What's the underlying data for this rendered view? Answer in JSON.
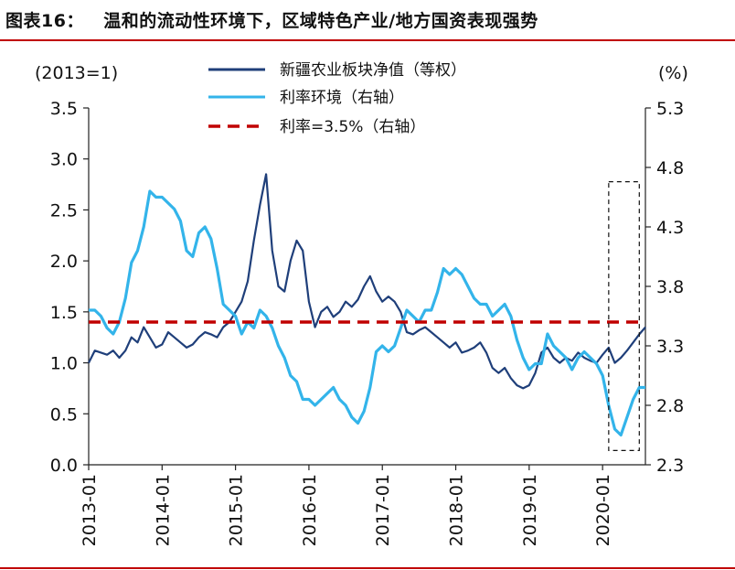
{
  "figure": {
    "title": "图表16：   温和的流动性环境下，区域特色产业/地方国资表现强势"
  },
  "chart_data": {
    "type": "line",
    "left_axis": {
      "unit_label": "(2013=1)",
      "range": [
        0.0,
        3.5
      ],
      "ticks": [
        "0.0",
        "0.5",
        "1.0",
        "1.5",
        "2.0",
        "2.5",
        "3.0",
        "3.5"
      ]
    },
    "right_axis": {
      "unit_label": "(%)",
      "range": [
        2.3,
        5.3
      ],
      "ticks": [
        "2.3",
        "2.8",
        "3.3",
        "3.8",
        "4.3",
        "4.8",
        "5.3"
      ]
    },
    "x_axis": {
      "range": [
        "2013-01",
        "2020-08"
      ],
      "tick_labels": [
        "2013-01",
        "2014-01",
        "2015-01",
        "2016-01",
        "2017-01",
        "2018-01",
        "2019-01",
        "2020-01"
      ]
    },
    "legend_position": "top",
    "series": [
      {
        "name": "新疆农业板块净值（等权）",
        "axis": "left",
        "color": "#1f3f7a",
        "points": [
          [
            "2013-01",
            1.0
          ],
          [
            "2013-02",
            1.12
          ],
          [
            "2013-03",
            1.1
          ],
          [
            "2013-04",
            1.08
          ],
          [
            "2013-05",
            1.12
          ],
          [
            "2013-06",
            1.05
          ],
          [
            "2013-07",
            1.12
          ],
          [
            "2013-08",
            1.25
          ],
          [
            "2013-09",
            1.2
          ],
          [
            "2013-10",
            1.35
          ],
          [
            "2013-11",
            1.25
          ],
          [
            "2013-12",
            1.15
          ],
          [
            "2014-01",
            1.18
          ],
          [
            "2014-02",
            1.3
          ],
          [
            "2014-03",
            1.25
          ],
          [
            "2014-04",
            1.2
          ],
          [
            "2014-05",
            1.15
          ],
          [
            "2014-06",
            1.18
          ],
          [
            "2014-07",
            1.25
          ],
          [
            "2014-08",
            1.3
          ],
          [
            "2014-09",
            1.28
          ],
          [
            "2014-10",
            1.25
          ],
          [
            "2014-11",
            1.35
          ],
          [
            "2014-12",
            1.4
          ],
          [
            "2015-01",
            1.5
          ],
          [
            "2015-02",
            1.6
          ],
          [
            "2015-03",
            1.8
          ],
          [
            "2015-04",
            2.2
          ],
          [
            "2015-05",
            2.55
          ],
          [
            "2015-06",
            2.85
          ],
          [
            "2015-07",
            2.1
          ],
          [
            "2015-08",
            1.75
          ],
          [
            "2015-09",
            1.7
          ],
          [
            "2015-10",
            2.0
          ],
          [
            "2015-11",
            2.2
          ],
          [
            "2015-12",
            2.1
          ],
          [
            "2016-01",
            1.6
          ],
          [
            "2016-02",
            1.35
          ],
          [
            "2016-03",
            1.5
          ],
          [
            "2016-04",
            1.55
          ],
          [
            "2016-05",
            1.45
          ],
          [
            "2016-06",
            1.5
          ],
          [
            "2016-07",
            1.6
          ],
          [
            "2016-08",
            1.55
          ],
          [
            "2016-09",
            1.62
          ],
          [
            "2016-10",
            1.75
          ],
          [
            "2016-11",
            1.85
          ],
          [
            "2016-12",
            1.7
          ],
          [
            "2017-01",
            1.6
          ],
          [
            "2017-02",
            1.65
          ],
          [
            "2017-03",
            1.6
          ],
          [
            "2017-04",
            1.5
          ],
          [
            "2017-05",
            1.3
          ],
          [
            "2017-06",
            1.28
          ],
          [
            "2017-07",
            1.32
          ],
          [
            "2017-08",
            1.35
          ],
          [
            "2017-09",
            1.3
          ],
          [
            "2017-10",
            1.25
          ],
          [
            "2017-11",
            1.2
          ],
          [
            "2017-12",
            1.15
          ],
          [
            "2018-01",
            1.2
          ],
          [
            "2018-02",
            1.1
          ],
          [
            "2018-03",
            1.12
          ],
          [
            "2018-04",
            1.15
          ],
          [
            "2018-05",
            1.2
          ],
          [
            "2018-06",
            1.1
          ],
          [
            "2018-07",
            0.95
          ],
          [
            "2018-08",
            0.9
          ],
          [
            "2018-09",
            0.95
          ],
          [
            "2018-10",
            0.85
          ],
          [
            "2018-11",
            0.78
          ],
          [
            "2018-12",
            0.75
          ],
          [
            "2019-01",
            0.78
          ],
          [
            "2019-02",
            0.9
          ],
          [
            "2019-03",
            1.1
          ],
          [
            "2019-04",
            1.15
          ],
          [
            "2019-05",
            1.05
          ],
          [
            "2019-06",
            1.0
          ],
          [
            "2019-07",
            1.05
          ],
          [
            "2019-08",
            1.02
          ],
          [
            "2019-09",
            1.1
          ],
          [
            "2019-10",
            1.05
          ],
          [
            "2019-11",
            1.02
          ],
          [
            "2019-12",
            1.0
          ],
          [
            "2020-01",
            1.08
          ],
          [
            "2020-02",
            1.15
          ],
          [
            "2020-03",
            1.0
          ],
          [
            "2020-04",
            1.05
          ],
          [
            "2020-05",
            1.12
          ],
          [
            "2020-06",
            1.2
          ],
          [
            "2020-07",
            1.28
          ],
          [
            "2020-08",
            1.35
          ]
        ]
      },
      {
        "name": "利率环境（右轴）",
        "axis": "right",
        "color": "#33b4ea",
        "points": [
          [
            "2013-01",
            3.6
          ],
          [
            "2013-02",
            3.6
          ],
          [
            "2013-03",
            3.55
          ],
          [
            "2013-04",
            3.45
          ],
          [
            "2013-05",
            3.4
          ],
          [
            "2013-06",
            3.5
          ],
          [
            "2013-07",
            3.7
          ],
          [
            "2013-08",
            4.0
          ],
          [
            "2013-09",
            4.1
          ],
          [
            "2013-10",
            4.3
          ],
          [
            "2013-11",
            4.6
          ],
          [
            "2013-12",
            4.55
          ],
          [
            "2014-01",
            4.55
          ],
          [
            "2014-02",
            4.5
          ],
          [
            "2014-03",
            4.45
          ],
          [
            "2014-04",
            4.35
          ],
          [
            "2014-05",
            4.1
          ],
          [
            "2014-06",
            4.05
          ],
          [
            "2014-07",
            4.25
          ],
          [
            "2014-08",
            4.3
          ],
          [
            "2014-09",
            4.2
          ],
          [
            "2014-10",
            3.95
          ],
          [
            "2014-11",
            3.65
          ],
          [
            "2014-12",
            3.6
          ],
          [
            "2015-01",
            3.55
          ],
          [
            "2015-02",
            3.4
          ],
          [
            "2015-03",
            3.5
          ],
          [
            "2015-04",
            3.45
          ],
          [
            "2015-05",
            3.6
          ],
          [
            "2015-06",
            3.55
          ],
          [
            "2015-07",
            3.45
          ],
          [
            "2015-08",
            3.3
          ],
          [
            "2015-09",
            3.2
          ],
          [
            "2015-10",
            3.05
          ],
          [
            "2015-11",
            3.0
          ],
          [
            "2015-12",
            2.85
          ],
          [
            "2016-01",
            2.85
          ],
          [
            "2016-02",
            2.8
          ],
          [
            "2016-03",
            2.85
          ],
          [
            "2016-04",
            2.9
          ],
          [
            "2016-05",
            2.95
          ],
          [
            "2016-06",
            2.85
          ],
          [
            "2016-07",
            2.8
          ],
          [
            "2016-08",
            2.7
          ],
          [
            "2016-09",
            2.65
          ],
          [
            "2016-10",
            2.75
          ],
          [
            "2016-11",
            2.95
          ],
          [
            "2016-12",
            3.25
          ],
          [
            "2017-01",
            3.3
          ],
          [
            "2017-02",
            3.25
          ],
          [
            "2017-03",
            3.3
          ],
          [
            "2017-04",
            3.45
          ],
          [
            "2017-05",
            3.6
          ],
          [
            "2017-06",
            3.55
          ],
          [
            "2017-07",
            3.5
          ],
          [
            "2017-08",
            3.6
          ],
          [
            "2017-09",
            3.6
          ],
          [
            "2017-10",
            3.75
          ],
          [
            "2017-11",
            3.95
          ],
          [
            "2017-12",
            3.9
          ],
          [
            "2018-01",
            3.95
          ],
          [
            "2018-02",
            3.9
          ],
          [
            "2018-03",
            3.8
          ],
          [
            "2018-04",
            3.7
          ],
          [
            "2018-05",
            3.65
          ],
          [
            "2018-06",
            3.65
          ],
          [
            "2018-07",
            3.55
          ],
          [
            "2018-08",
            3.6
          ],
          [
            "2018-09",
            3.65
          ],
          [
            "2018-10",
            3.55
          ],
          [
            "2018-11",
            3.35
          ],
          [
            "2018-12",
            3.2
          ],
          [
            "2019-01",
            3.1
          ],
          [
            "2019-02",
            3.15
          ],
          [
            "2019-03",
            3.15
          ],
          [
            "2019-04",
            3.4
          ],
          [
            "2019-05",
            3.3
          ],
          [
            "2019-06",
            3.25
          ],
          [
            "2019-07",
            3.2
          ],
          [
            "2019-08",
            3.1
          ],
          [
            "2019-09",
            3.2
          ],
          [
            "2019-10",
            3.25
          ],
          [
            "2019-11",
            3.2
          ],
          [
            "2019-12",
            3.15
          ],
          [
            "2020-01",
            3.05
          ],
          [
            "2020-02",
            2.8
          ],
          [
            "2020-03",
            2.6
          ],
          [
            "2020-04",
            2.55
          ],
          [
            "2020-05",
            2.7
          ],
          [
            "2020-06",
            2.85
          ],
          [
            "2020-07",
            2.95
          ],
          [
            "2020-08",
            2.95
          ]
        ]
      },
      {
        "name": "利率=3.5%（右轴）",
        "axis": "right",
        "color": "#c00000",
        "style": "dashed",
        "points": [
          [
            "2013-01",
            3.5
          ],
          [
            "2020-08",
            3.5
          ]
        ]
      }
    ],
    "annotations": [
      {
        "type": "dashed-box",
        "x_range": [
          "2020-02",
          "2020-07"
        ],
        "y_range_right": [
          2.42,
          4.68
        ],
        "color": "#111111"
      }
    ]
  }
}
